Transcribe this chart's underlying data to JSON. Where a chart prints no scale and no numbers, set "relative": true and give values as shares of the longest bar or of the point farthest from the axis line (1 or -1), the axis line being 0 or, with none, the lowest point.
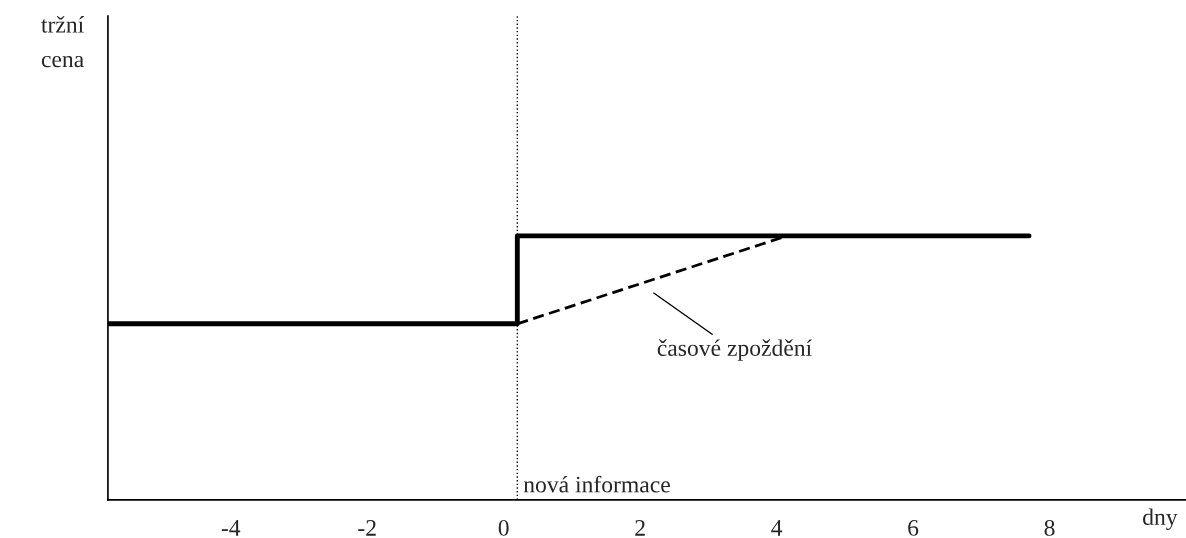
{
  "chart_data": {
    "type": "line",
    "relative": true,
    "xlabel": "dny",
    "xlim": [
      -5.8,
      10.0
    ],
    "xticks": [
      {
        "value": -4,
        "label": "-4"
      },
      {
        "value": -2,
        "label": "-2"
      },
      0,
      2,
      4,
      6,
      8
    ],
    "tick_labels": "x",
    "grid": false,
    "legend": false,
    "series": [
      {
        "color": "#000000",
        "line_style": "solid",
        "x": [
          -5.8,
          0.2,
          0.2,
          7.7
        ],
        "values": [
          0.667,
          0.667,
          1,
          1
        ]
      },
      {
        "color": "#000000",
        "line_style": "dashed",
        "x": [
          0.2,
          4.15
        ],
        "values": [
          0.667,
          1
        ]
      }
    ],
    "ref_lines": [
      {
        "axis": "x",
        "value": 0.2,
        "label": "nová informace",
        "color": "#000000",
        "line_style": "dotted"
      }
    ],
    "annotations": [
      "tržní\ncena",
      {
        "text": "časové zpoždění",
        "x": 2.0,
        "y": 0.82
      }
    ]
  }
}
